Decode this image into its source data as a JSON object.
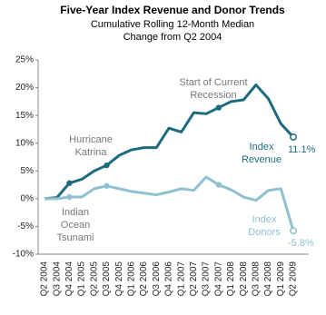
{
  "chart_data": {
    "type": "line",
    "title": "Five-Year Index Revenue and Donor Trends",
    "subtitle": "Cumulative Rolling 12-Month Median Change from Q2 2004",
    "categories": [
      "Q2 2004",
      "Q3 2004",
      "Q4 2004",
      "Q1 2005",
      "Q2 2005",
      "Q3 2005",
      "Q4 2005",
      "Q1 2006",
      "Q2 2006",
      "Q3 2006",
      "Q4 2006",
      "Q1 2007",
      "Q2 2007",
      "Q3 2007",
      "Q4 2007",
      "Q1 2008",
      "Q2 2008",
      "Q3 2008",
      "Q4 2008",
      "Q1 2009",
      "Q2 2009"
    ],
    "series": [
      {
        "name": "Index Revenue",
        "color": "#1f6b7e",
        "values": [
          0,
          0.2,
          2.8,
          3.5,
          5,
          6,
          7.8,
          8.8,
          9.2,
          9.2,
          12.7,
          12,
          15.5,
          15.3,
          16.4,
          17.5,
          17.8,
          20.5,
          18,
          13.5,
          11.1
        ],
        "value_labels": [
          null,
          null,
          null,
          null,
          null,
          null,
          null,
          null,
          null,
          null,
          null,
          null,
          null,
          null,
          null,
          null,
          null,
          null,
          null,
          null,
          "11.1%"
        ]
      },
      {
        "name": "Index Donors",
        "color": "#8fc1d1",
        "values": [
          0,
          0,
          0.3,
          0.3,
          1.8,
          2.3,
          1.8,
          1.3,
          1,
          0.7,
          1.2,
          1.8,
          1.5,
          3.9,
          2.5,
          1.6,
          0.3,
          -0.3,
          1.5,
          1.8,
          -5.8
        ],
        "value_labels": [
          null,
          null,
          null,
          null,
          null,
          null,
          null,
          null,
          null,
          null,
          null,
          null,
          null,
          null,
          null,
          null,
          null,
          null,
          null,
          null,
          "-5.8%"
        ]
      }
    ],
    "annotations": [
      "Hurricane Katrina",
      "Start of Current Recession",
      "Indian Ocean Tsunami"
    ],
    "ylim": [
      -10,
      25
    ],
    "yticks": [
      {
        "value": -10,
        "label": "-10%"
      },
      {
        "value": -5,
        "label": "-5%"
      },
      {
        "value": 0,
        "label": "0%"
      },
      {
        "value": 5,
        "label": "5%"
      },
      {
        "value": 10,
        "label": "10%"
      },
      {
        "value": 15,
        "label": "15%"
      },
      {
        "value": 20,
        "label": "20%"
      },
      {
        "value": 25,
        "label": "25%"
      }
    ],
    "grid": false
  }
}
